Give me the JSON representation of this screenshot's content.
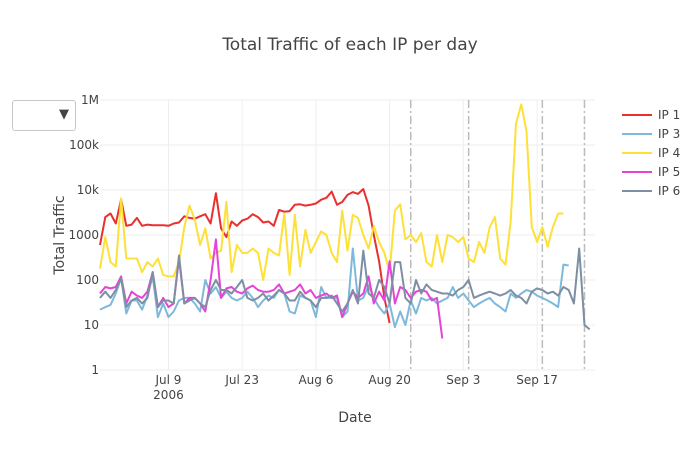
{
  "dropdown": {
    "selected": "",
    "caret": "▼"
  },
  "colors": {
    "IP 1": "#e8302f",
    "IP 3": "#7eb8dc",
    "IP 4": "#fde038",
    "IP 5": "#e544d6",
    "IP 6": "#7d8fa2",
    "grid": "#eeeeee",
    "vline": "#bbbbbb",
    "text": "#444444"
  },
  "chart_data": {
    "type": "line",
    "title": "Total Traffic of each IP per day",
    "xlabel": "Date",
    "ylabel": "Total Traffic",
    "yscale": "log",
    "ylim": [
      1,
      1000000
    ],
    "xlim": [
      "2006-06-26",
      "2006-09-28"
    ],
    "grid": true,
    "legend_position": "right",
    "x_ticks": [
      {
        "date": "2006-07-09",
        "label": "Jul 9",
        "sublabel": "2006"
      },
      {
        "date": "2006-07-23",
        "label": "Jul 23",
        "sublabel": ""
      },
      {
        "date": "2006-08-06",
        "label": "Aug 6",
        "sublabel": ""
      },
      {
        "date": "2006-08-20",
        "label": "Aug 20",
        "sublabel": ""
      },
      {
        "date": "2006-09-03",
        "label": "Sep 3",
        "sublabel": ""
      },
      {
        "date": "2006-09-17",
        "label": "Sep 17",
        "sublabel": ""
      }
    ],
    "y_ticks": [
      {
        "value": 1,
        "label": "1"
      },
      {
        "value": 10,
        "label": "10"
      },
      {
        "value": 100,
        "label": "100"
      },
      {
        "value": 1000,
        "label": "1000"
      },
      {
        "value": 10000,
        "label": "10k"
      },
      {
        "value": 100000,
        "label": "100k"
      },
      {
        "value": 1000000,
        "label": "1M"
      }
    ],
    "vertical_lines": [
      "2006-08-24",
      "2006-09-04",
      "2006-09-18",
      "2006-09-26"
    ],
    "series": [
      {
        "name": "IP 1",
        "start": "2006-06-26",
        "values": [
          600,
          2500,
          3000,
          1800,
          6200,
          1600,
          1700,
          2400,
          1600,
          1700,
          1650,
          1650,
          1650,
          1600,
          1800,
          1900,
          2600,
          2400,
          2300,
          2600,
          2900,
          1800,
          8500,
          1400,
          900,
          2000,
          1600,
          2100,
          2300,
          2900,
          2500,
          1900,
          2000,
          1600,
          3600,
          3300,
          3400,
          4700,
          4800,
          4500,
          4700,
          5000,
          6100,
          6700,
          9200,
          4700,
          5400,
          7800,
          9000,
          8200,
          10500,
          4500,
          1000,
          260,
          40,
          11
        ]
      },
      {
        "name": "IP 3",
        "start": "2006-06-26",
        "values": [
          22,
          25,
          28,
          50,
          110,
          18,
          35,
          35,
          22,
          45,
          120,
          15,
          30,
          15,
          20,
          35,
          40,
          40,
          30,
          20,
          100,
          50,
          70,
          40,
          55,
          40,
          35,
          40,
          55,
          40,
          25,
          35,
          45,
          40,
          60,
          50,
          20,
          18,
          45,
          40,
          35,
          15,
          70,
          40,
          40,
          40,
          15,
          20,
          500,
          35,
          40,
          75,
          40,
          25,
          18,
          30,
          9,
          20,
          10,
          35,
          18,
          40,
          35,
          40,
          30,
          35,
          40,
          70,
          40,
          50,
          35,
          25,
          30,
          35,
          40,
          30,
          25,
          20,
          50,
          40,
          50,
          60,
          55,
          45,
          40,
          35,
          30,
          25,
          220,
          210
        ]
      },
      {
        "name": "IP 4",
        "start": "2006-06-26",
        "values": [
          180,
          900,
          250,
          200,
          6500,
          300,
          300,
          300,
          150,
          250,
          200,
          300,
          130,
          120,
          120,
          250,
          1500,
          4500,
          2200,
          600,
          1400,
          300,
          400,
          450,
          5500,
          150,
          600,
          400,
          400,
          500,
          400,
          100,
          500,
          400,
          350,
          3000,
          130,
          2800,
          200,
          1300,
          400,
          700,
          1200,
          1000,
          400,
          250,
          3500,
          450,
          2800,
          2400,
          1000,
          500,
          1600,
          700,
          400,
          150,
          3500,
          4800,
          800,
          1000,
          700,
          1100,
          250,
          200,
          1000,
          250,
          1000,
          900,
          700,
          900,
          300,
          250,
          700,
          400,
          1500,
          2500,
          300,
          220,
          2000,
          300000,
          800000,
          200000,
          1500,
          700,
          1500,
          550,
          1500,
          3000,
          3000
        ]
      },
      {
        "name": "IP 5",
        "start": "2006-06-26",
        "values": [
          50,
          70,
          65,
          70,
          120,
          30,
          55,
          45,
          40,
          55,
          150,
          25,
          40,
          25,
          30,
          300,
          30,
          40,
          40,
          30,
          20,
          100,
          800,
          40,
          65,
          70,
          55,
          50,
          65,
          75,
          60,
          55,
          55,
          60,
          80,
          50,
          55,
          60,
          80,
          50,
          60,
          40,
          45,
          50,
          40,
          45,
          15,
          30,
          55,
          40,
          50,
          120,
          30,
          55,
          35,
          260,
          30,
          70,
          60,
          40,
          55,
          60,
          55,
          35,
          40,
          5
        ]
      },
      {
        "name": "IP 6",
        "start": "2006-06-26",
        "values": [
          40,
          55,
          40,
          60,
          110,
          25,
          35,
          40,
          30,
          40,
          150,
          25,
          35,
          35,
          30,
          350,
          30,
          35,
          40,
          30,
          25,
          60,
          100,
          60,
          60,
          50,
          70,
          100,
          40,
          35,
          40,
          50,
          35,
          45,
          60,
          50,
          35,
          35,
          55,
          40,
          35,
          25,
          40,
          40,
          45,
          30,
          20,
          30,
          60,
          30,
          450,
          50,
          40,
          100,
          70,
          30,
          250,
          250,
          40,
          30,
          100,
          50,
          80,
          60,
          55,
          50,
          50,
          45,
          60,
          70,
          100,
          40,
          45,
          50,
          55,
          50,
          45,
          50,
          60,
          45,
          40,
          30,
          55,
          65,
          60,
          50,
          55,
          45,
          70,
          60,
          30,
          500,
          10,
          8
        ]
      }
    ]
  }
}
